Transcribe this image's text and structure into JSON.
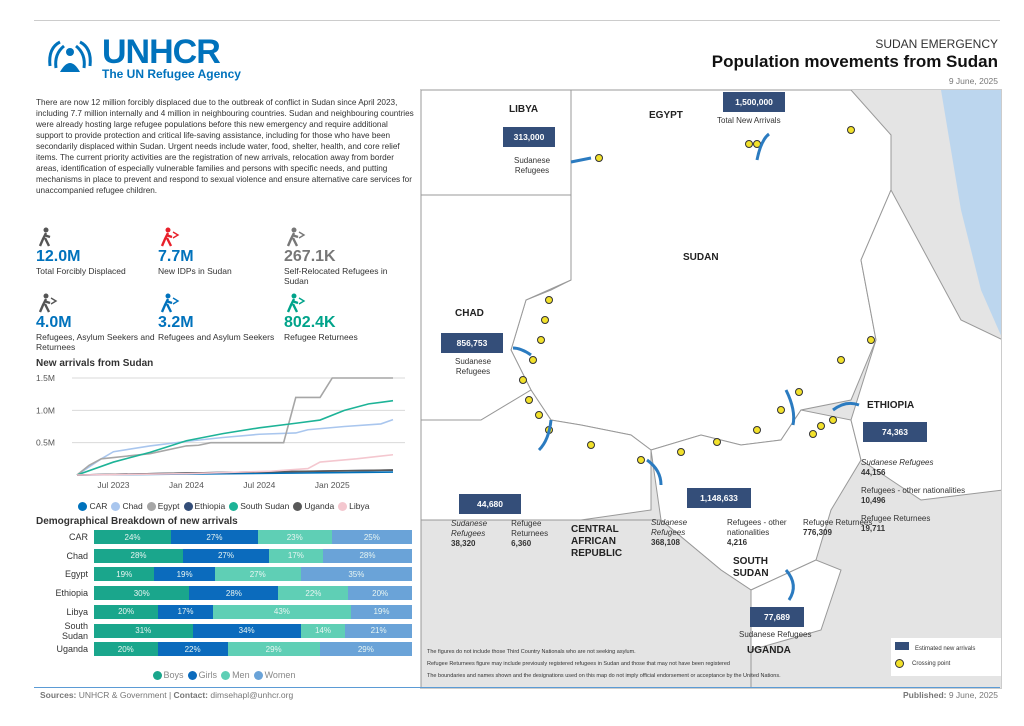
{
  "header": {
    "org": "UNHCR",
    "org_sub": "The UN Refugee Agency",
    "kicker": "SUDAN EMERGENCY",
    "title": "Population movements from Sudan",
    "date": "9 June, 2025"
  },
  "intro": "There are now 12 million forcibly displaced due to the outbreak of conflict in Sudan since April 2023, including 7.7 million internally and 4 million in neighbouring countries. Sudan and neighbouring countries were already hosting large refugee populations before this new emergency and require additional support to provide protection and critical life-saving assistance, including for those who have been secondarily displaced within Sudan. Urgent needs include water, food, shelter, health, and core relief items. The current priority activities are the registration of new arrivals, relocation away from border areas, identification of especially vulnerable families and persons with specific needs, and putting mechanisms in place to prevent and respond to sexual violence and ensure alternative care services for unaccompanied refugee children.",
  "kpis": [
    {
      "value": "12.0M",
      "label": "Total Forcibly Displaced",
      "color": "#0072bc",
      "icon": "displaced-person-icon",
      "icon_color": "#555"
    },
    {
      "value": "7.7M",
      "label": "New IDPs in Sudan",
      "color": "#0072bc",
      "icon": "idp-running-icon",
      "icon_color": "#e8202a"
    },
    {
      "value": "267.1K",
      "label": "Self-Relocated Refugees in Sudan",
      "color": "#777",
      "icon": "relocated-refugee-icon",
      "icon_color": "#777"
    },
    {
      "value": "4.0M",
      "label": "Refugees, Asylum Seekers and Returnees",
      "color": "#0072bc",
      "icon": "refugee-asylum-returnee-icon",
      "icon_color": "#555"
    },
    {
      "value": "3.2M",
      "label": "Refugees and Asylum Seekers",
      "color": "#0072bc",
      "icon": "refugee-asylum-icon",
      "icon_color": "#0072bc"
    },
    {
      "value": "802.4K",
      "label": "Refugee Returnees",
      "color": "#00a38a",
      "icon": "returnee-icon",
      "icon_color": "#00a38a"
    }
  ],
  "chart_data": [
    {
      "type": "line",
      "title": "New arrivals from Sudan",
      "yticks": [
        "1.5M",
        "1.0M",
        "0.5M"
      ],
      "ylim": [
        0,
        1500000
      ],
      "xticks": [
        "Jul 2023",
        "Jan 2024",
        "Jul 2024",
        "Jan 2025"
      ],
      "xlim": [
        "2023-04",
        "2025-06"
      ],
      "grid": true,
      "legend": "bottom",
      "series": [
        {
          "name": "CAR",
          "color": "#0072bc",
          "points": [
            [
              "2023-04",
              0
            ],
            [
              "2024-01",
              15000
            ],
            [
              "2025-06",
              44680
            ]
          ]
        },
        {
          "name": "Chad",
          "color": "#a9c6ee",
          "points": [
            [
              "2023-04",
              0
            ],
            [
              "2023-06",
              250000
            ],
            [
              "2023-07",
              360000
            ],
            [
              "2023-10",
              450000
            ],
            [
              "2024-01",
              520000
            ],
            [
              "2024-04",
              580000
            ],
            [
              "2024-07",
              630000
            ],
            [
              "2024-10",
              650000
            ],
            [
              "2024-11",
              700000
            ],
            [
              "2025-02",
              750000
            ],
            [
              "2025-05",
              790000
            ],
            [
              "2025-06",
              856753
            ]
          ]
        },
        {
          "name": "Egypt",
          "color": "#a6a6a6",
          "points": [
            [
              "2023-04",
              0
            ],
            [
              "2023-05",
              150000
            ],
            [
              "2023-06",
              250000
            ],
            [
              "2023-07",
              270000
            ],
            [
              "2023-10",
              330000
            ],
            [
              "2024-01",
              450000
            ],
            [
              "2024-02",
              460000
            ],
            [
              "2024-03",
              500000
            ],
            [
              "2024-09",
              500000
            ],
            [
              "2024-10",
              1200000
            ],
            [
              "2024-12",
              1200000
            ],
            [
              "2025-01",
              1500000
            ],
            [
              "2025-06",
              1500000
            ]
          ]
        },
        {
          "name": "Ethiopia",
          "color": "#344e79",
          "points": [
            [
              "2023-04",
              0
            ],
            [
              "2024-01",
              30000
            ],
            [
              "2025-06",
              74363
            ]
          ]
        },
        {
          "name": "South Sudan",
          "color": "#1db397",
          "points": [
            [
              "2023-04",
              0
            ],
            [
              "2023-07",
              200000
            ],
            [
              "2023-10",
              350000
            ],
            [
              "2024-01",
              530000
            ],
            [
              "2024-04",
              640000
            ],
            [
              "2024-07",
              730000
            ],
            [
              "2024-10",
              800000
            ],
            [
              "2024-12",
              850000
            ],
            [
              "2025-02",
              1000000
            ],
            [
              "2025-04",
              1100000
            ],
            [
              "2025-06",
              1148633
            ]
          ]
        },
        {
          "name": "Uganda",
          "color": "#595959",
          "points": [
            [
              "2023-04",
              0
            ],
            [
              "2024-01",
              30000
            ],
            [
              "2025-06",
              77689
            ]
          ]
        },
        {
          "name": "Libya",
          "color": "#f4c7cf",
          "points": [
            [
              "2023-04",
              0
            ],
            [
              "2024-01",
              20000
            ],
            [
              "2024-08",
              60000
            ],
            [
              "2024-11",
              100000
            ],
            [
              "2024-12",
              200000
            ],
            [
              "2025-03",
              250000
            ],
            [
              "2025-06",
              313000
            ]
          ]
        }
      ]
    },
    {
      "type": "bar",
      "stacked": true,
      "orientation": "horizontal",
      "title": "Demographical Breakdown of new arrivals",
      "unit": "%",
      "legend": "bottom",
      "categories": [
        "CAR",
        "Chad",
        "Egypt",
        "Ethiopia",
        "Libya",
        "South Sudan",
        "Uganda"
      ],
      "series": [
        {
          "name": "Boys",
          "color": "#1aa68c",
          "values": [
            24,
            28,
            19,
            30,
            20,
            31,
            20
          ]
        },
        {
          "name": "Girls",
          "color": "#0b6bbd",
          "values": [
            27,
            27,
            19,
            28,
            17,
            34,
            22
          ]
        },
        {
          "name": "Men",
          "color": "#5fcfb5",
          "values": [
            23,
            17,
            27,
            22,
            43,
            14,
            29
          ]
        },
        {
          "name": "Women",
          "color": "#6aa3d8",
          "values": [
            25,
            28,
            35,
            20,
            19,
            21,
            29
          ]
        }
      ]
    }
  ],
  "map": {
    "countries": {
      "libya": "LIBYA",
      "egypt": "EGYPT",
      "sudan": "SUDAN",
      "chad": "CHAD",
      "ethiopia": "ETHIOPIA",
      "car": "CENTRAL AFRICAN REPUBLIC",
      "south_sudan": "SOUTH SUDAN",
      "uganda": "UGANDA"
    },
    "libya": {
      "total": "313,000",
      "label": "Sudanese Refugees"
    },
    "egypt": {
      "total": "1,500,000",
      "label": "Total New Arrivals"
    },
    "chad": {
      "total": "856,753",
      "label": "Sudanese Refugees"
    },
    "ethiopia": {
      "total": "74,363",
      "items": [
        {
          "label": "Sudanese Refugees",
          "value": "44,156"
        },
        {
          "label": "Refugees - other nationalities",
          "value": "10,496"
        },
        {
          "label": "Refugee Returnees",
          "value": "19,711"
        }
      ]
    },
    "car": {
      "total": "44,680",
      "items": [
        {
          "label": "Sudanese Refugees",
          "value": "38,320"
        },
        {
          "label": "Refugee Returnees",
          "value": "6,360"
        }
      ]
    },
    "south_sudan": {
      "total": "1,148,633",
      "items": [
        {
          "label": "Sudanese Refugees",
          "value": "368,108"
        },
        {
          "label": "Refugees - other nationalities",
          "value": "4,216"
        },
        {
          "label": "Refugee Returnees",
          "value": "776,309"
        }
      ]
    },
    "uganda": {
      "total": "77,689",
      "label": "Sudanese Refugees"
    },
    "notes": [
      "The figures do not include those Third Country Nationals who are not seeking asylum.",
      "Refugee Returnees figure may include previously registered refugees in Sudan and those that may not have been registered",
      "The boundaries and names shown and the designations used on this map do not imply official endorsement or acceptance by the United Nations."
    ],
    "legend": [
      {
        "icon": "new-arrivals-box-icon",
        "label": "Estimated new arrivals"
      },
      {
        "icon": "crossing-point-icon",
        "label": "Crossing point"
      }
    ],
    "colors": {
      "land": "#e4e4e4",
      "sudan": "#ffffff",
      "water": "#bcd6ee",
      "box": "#344e79",
      "arrow": "#2b7bc0",
      "crossing": "#f2e12b"
    }
  },
  "footer": {
    "sources_label": "Sources:",
    "sources": "UNHCR & Government",
    "contact_label": "Contact:",
    "contact": "dimsehapl@unhcr.org",
    "published_label": "Published:",
    "published": "9 June, 2025"
  }
}
